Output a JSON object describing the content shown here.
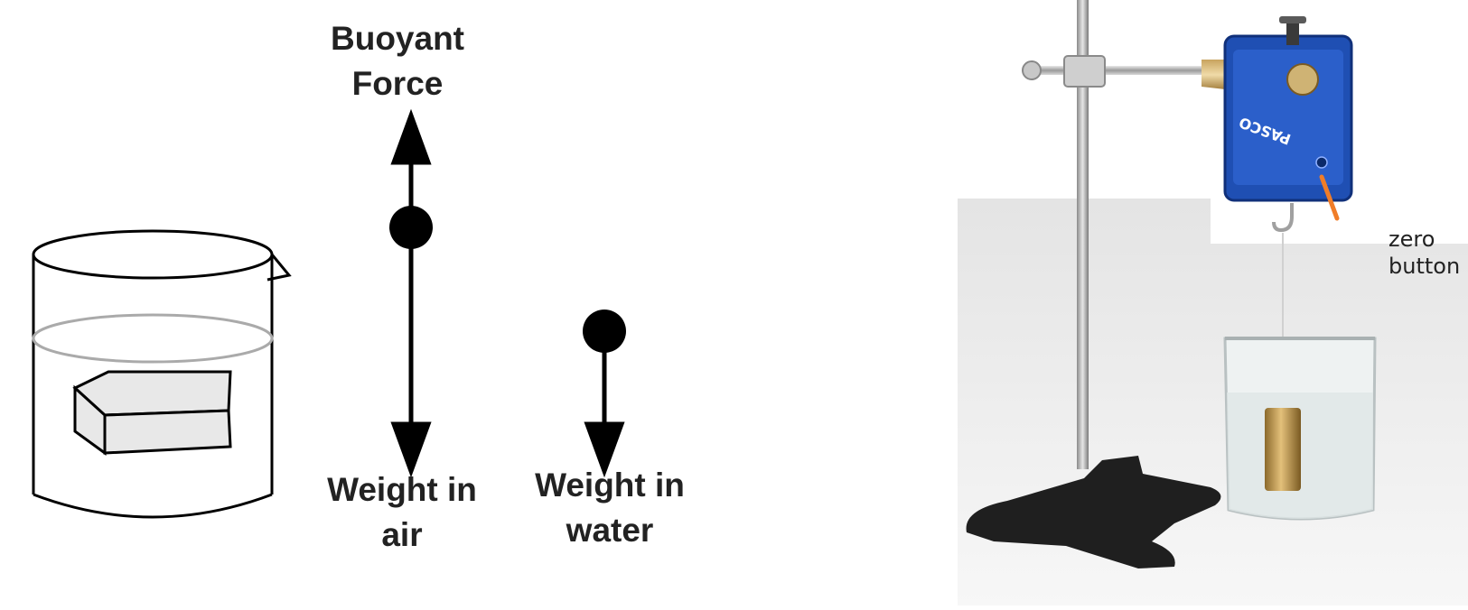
{
  "diagram": {
    "buoyant_force_line1": "Buoyant",
    "buoyant_force_line2": "Force",
    "weight_air_line1": "Weight in",
    "weight_air_line2": "air",
    "weight_water_line1": "Weight in",
    "weight_water_line2": "water"
  },
  "photo": {
    "zero_button_line1": "zero",
    "zero_button_line2": "button",
    "sensor_brand": "PASCO",
    "pointer_color": "#f07d28",
    "sensor_color": "#1f4fb3"
  }
}
